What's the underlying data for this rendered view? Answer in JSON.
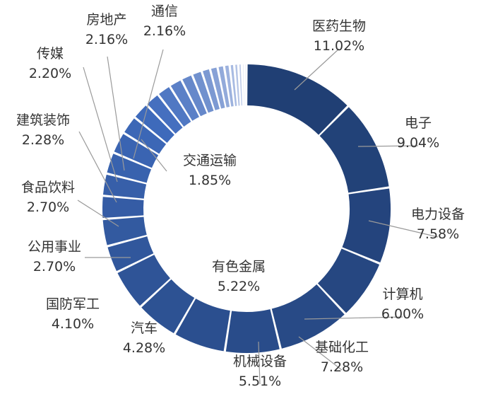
{
  "chart_data": {
    "type": "pie",
    "style": "donut",
    "title": "",
    "legend": "none",
    "colors": {
      "start": "#203f74",
      "mid": "#3f6bbd",
      "end": "#d4dcf1",
      "leader_line": "#9a9a9a",
      "label_text": "#333333"
    },
    "slices": [
      {
        "name": "医药生物",
        "value": 11.02,
        "label": "11.02%",
        "labeled": true
      },
      {
        "name": "电子",
        "value": 9.04,
        "label": "9.04%",
        "labeled": true
      },
      {
        "name": "电力设备",
        "value": 7.58,
        "label": "7.58%",
        "labeled": true
      },
      {
        "name": "计算机",
        "value": 6.0,
        "label": "6.00%",
        "labeled": true
      },
      {
        "name": "基础化工",
        "value": 7.28,
        "label": "7.28%",
        "labeled": true
      },
      {
        "name": "机械设备",
        "value": 5.51,
        "label": "5.51%",
        "labeled": true
      },
      {
        "name": "有色金属",
        "value": 5.22,
        "label": "5.22%",
        "labeled": true
      },
      {
        "name": "汽车",
        "value": 4.28,
        "label": "4.28%",
        "labeled": true
      },
      {
        "name": "国防军工",
        "value": 4.1,
        "label": "4.10%",
        "labeled": true
      },
      {
        "name": "公用事业",
        "value": 2.7,
        "label": "2.70%",
        "labeled": true
      },
      {
        "name": "食品饮料",
        "value": 2.7,
        "label": "2.70%",
        "labeled": true
      },
      {
        "name": "建筑装饰",
        "value": 2.28,
        "label": "2.28%",
        "labeled": true
      },
      {
        "name": "传媒",
        "value": 2.2,
        "label": "2.20%",
        "labeled": true
      },
      {
        "name": "房地产",
        "value": 2.16,
        "label": "2.16%",
        "labeled": true
      },
      {
        "name": "通信",
        "value": 2.16,
        "label": "2.16%",
        "labeled": true
      },
      {
        "name": "交通运输",
        "value": 1.85,
        "label": "1.85%",
        "labeled": true
      },
      {
        "value": 1.7,
        "labeled": false
      },
      {
        "value": 1.5,
        "labeled": false
      },
      {
        "value": 1.4,
        "labeled": false
      },
      {
        "value": 1.3,
        "labeled": false
      },
      {
        "value": 1.15,
        "labeled": false
      },
      {
        "value": 1.0,
        "labeled": false
      },
      {
        "value": 0.85,
        "labeled": false
      },
      {
        "value": 0.75,
        "labeled": false
      },
      {
        "value": 0.65,
        "labeled": false
      },
      {
        "value": 0.55,
        "labeled": false
      },
      {
        "value": 0.45,
        "labeled": false
      },
      {
        "value": 0.4,
        "labeled": false
      },
      {
        "value": 0.35,
        "labeled": false
      },
      {
        "value": 0.25,
        "labeled": false
      },
      {
        "value": 0.21,
        "labeled": false
      }
    ]
  }
}
